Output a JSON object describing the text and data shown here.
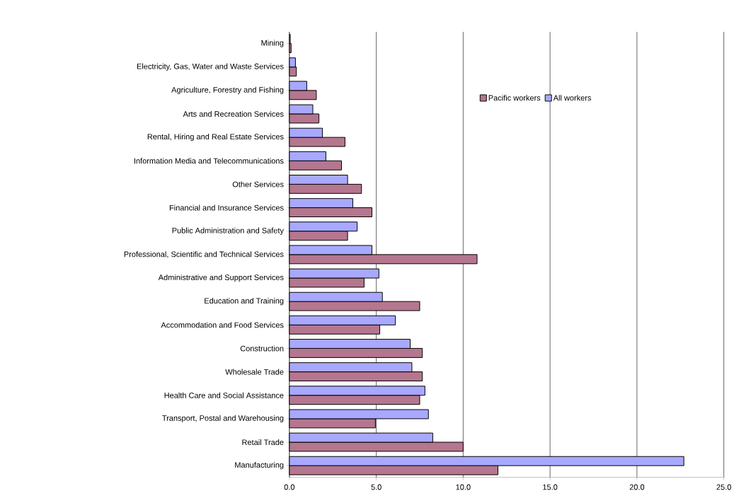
{
  "chart_data": {
    "type": "bar",
    "orientation": "horizontal",
    "categories": [
      "Mining",
      "Electricity, Gas, Water and Waste Services",
      "Agriculture, Forestry and Fishing",
      "Arts and Recreation Services",
      "Rental, Hiring and Real Estate Services",
      "Information Media and Telecommunications",
      "Other Services",
      "Financial and Insurance Services",
      "Public Administration and Safety",
      "Professional, Scientific and Technical Services",
      "Administrative and Support Services",
      "Education and Training",
      "Accommodation and Food Services",
      "Construction",
      "Wholesale Trade",
      "Health Care and Social Assistance",
      "Transport, Postal and Warehousing",
      "Retail Trade",
      "Manufacturing"
    ],
    "series": [
      {
        "name": "Pacific workers",
        "color": "#b5768f",
        "values": [
          0.1,
          0.4,
          1.55,
          1.7,
          3.2,
          3.0,
          4.15,
          4.75,
          3.35,
          10.8,
          4.3,
          7.5,
          5.2,
          7.65,
          7.65,
          7.5,
          4.95,
          10.0,
          12.0
        ]
      },
      {
        "name": "All workers",
        "color": "#a8a8ff",
        "values": [
          0.05,
          0.35,
          1.0,
          1.35,
          1.9,
          2.1,
          3.35,
          3.65,
          3.9,
          4.75,
          5.15,
          5.35,
          6.1,
          6.95,
          7.05,
          7.8,
          8.0,
          8.25,
          22.7
        ]
      }
    ],
    "xlim": [
      0,
      25
    ],
    "xticks": [
      {
        "value": 0,
        "label": "0.0"
      },
      {
        "value": 5,
        "label": "5.0"
      },
      {
        "value": 10,
        "label": "10.0"
      },
      {
        "value": 15,
        "label": "15.0"
      },
      {
        "value": 20,
        "label": "20.0"
      },
      {
        "value": 25,
        "label": "25.0"
      }
    ],
    "grid": "x",
    "legend": "top right"
  }
}
